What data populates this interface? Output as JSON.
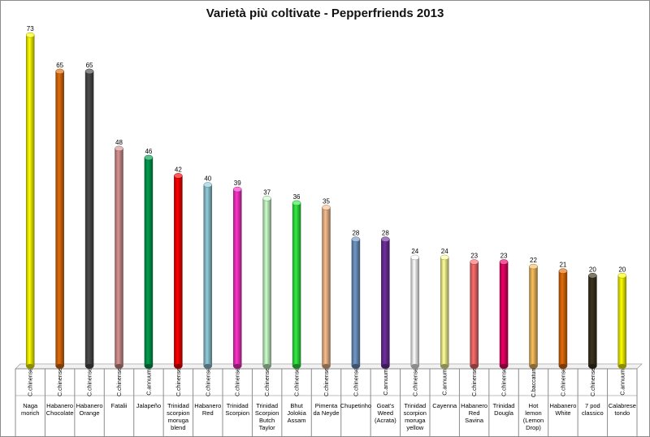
{
  "chart_data": {
    "type": "bar",
    "title": "Varietà più coltivate - Pepperfriends 2013",
    "ylim": [
      0,
      75
    ],
    "grid": false,
    "legend": "none",
    "categories": [
      {
        "species": "C.chinense",
        "name": [
          "Naga",
          "morich"
        ]
      },
      {
        "species": "C.chinense",
        "name": [
          "Habanero",
          "Chocolate"
        ]
      },
      {
        "species": "C.chinense",
        "name": [
          "Habanero",
          "Orange"
        ]
      },
      {
        "species": "C.chinense",
        "name": [
          "Fatalii"
        ]
      },
      {
        "species": "C.annuum",
        "name": [
          "Jalapeño"
        ]
      },
      {
        "species": "C.chinense",
        "name": [
          "Trinidad",
          "scorpion",
          "moruga",
          "blend"
        ]
      },
      {
        "species": "C.chinense",
        "name": [
          "Habanero",
          "Red"
        ]
      },
      {
        "species": "C.chinense",
        "name": [
          "Trinidad",
          "Scorpion"
        ]
      },
      {
        "species": "C.chinense",
        "name": [
          "Trinidad",
          "Scorpion",
          "Butch",
          "Taylor"
        ]
      },
      {
        "species": "C.chinense",
        "name": [
          "Bhut",
          "Jolokia",
          "Assam"
        ]
      },
      {
        "species": "C.chinense",
        "name": [
          "Pimenta",
          "da Neyde"
        ]
      },
      {
        "species": "C.chinense",
        "name": [
          "Chupetinho"
        ]
      },
      {
        "species": "C.annuum",
        "name": [
          "Goat's",
          "Weed",
          "(Acrata)"
        ]
      },
      {
        "species": "C.chinense",
        "name": [
          "Trinidad",
          "scorpion",
          "moruga",
          "yellow"
        ]
      },
      {
        "species": "C.annuum",
        "name": [
          "Cayenna"
        ]
      },
      {
        "species": "C.chinense",
        "name": [
          "Habanero",
          "Red",
          "Savina"
        ]
      },
      {
        "species": "C.chinense",
        "name": [
          "Trinidad",
          "Dougla"
        ]
      },
      {
        "species": "C.baccatum",
        "name": [
          "Hot",
          "lemon",
          "(Lemon",
          "Drop)"
        ]
      },
      {
        "species": "C.chinense",
        "name": [
          "Habanero",
          "White"
        ]
      },
      {
        "species": "C.chinense",
        "name": [
          "7 pod",
          "classico"
        ]
      },
      {
        "species": "C.annuum",
        "name": [
          "Calabrese",
          "tondo"
        ]
      }
    ],
    "values": [
      73,
      65,
      65,
      48,
      46,
      42,
      40,
      39,
      37,
      36,
      35,
      28,
      28,
      24,
      24,
      23,
      23,
      22,
      21,
      20,
      20
    ],
    "colors": [
      "#ffff00",
      "#e46c0a",
      "#4d4d4d",
      "#d99594",
      "#00a050",
      "#ff0000",
      "#92cddc",
      "#ff33cc",
      "#ccffcc",
      "#33ee44",
      "#fabf8f",
      "#7199c8",
      "#7030a0",
      "#ffffff",
      "#ffff99",
      "#ff6d6d",
      "#ee0066",
      "#fac060",
      "#e46c0a",
      "#3d3520",
      "#ffff00"
    ]
  }
}
